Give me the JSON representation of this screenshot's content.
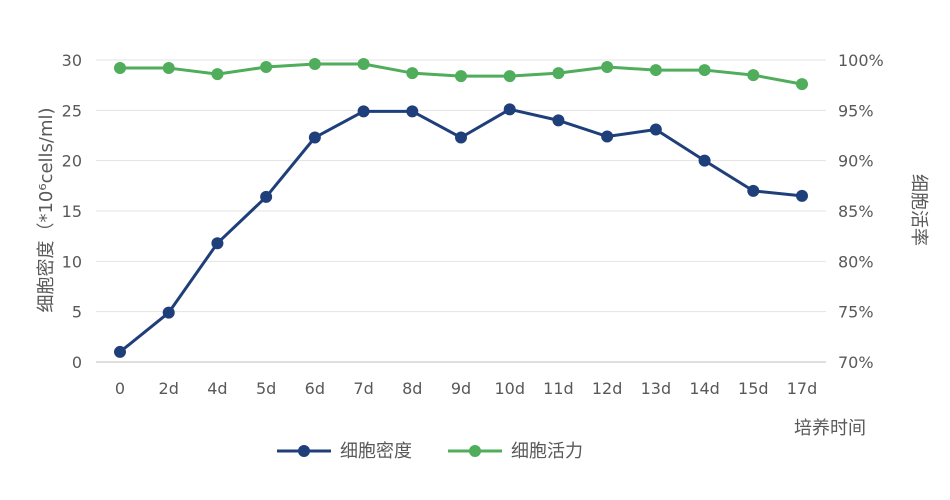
{
  "chart_data": {
    "type": "line",
    "categories": [
      "0",
      "2d",
      "4d",
      "5d",
      "6d",
      "7d",
      "8d",
      "9d",
      "10d",
      "11d",
      "12d",
      "13d",
      "14d",
      "15d",
      "17d"
    ],
    "series": [
      {
        "name": "细胞密度",
        "axis": "left",
        "color": "#1f3f7a",
        "values": [
          1.0,
          4.9,
          11.8,
          16.4,
          22.3,
          24.9,
          24.9,
          22.3,
          25.1,
          24.0,
          22.4,
          23.1,
          20.0,
          17.0,
          16.5
        ]
      },
      {
        "name": "细胞活力",
        "axis": "right",
        "color": "#4fad5b",
        "values": [
          0.992,
          0.992,
          0.986,
          0.993,
          0.996,
          0.996,
          0.987,
          0.984,
          0.984,
          0.987,
          0.993,
          0.99,
          0.99,
          0.985,
          0.976
        ]
      }
    ],
    "left_axis": {
      "label": "细胞密度（*10⁶cells/ml)",
      "ylim": [
        0,
        30
      ],
      "ticks": [
        "0",
        "5",
        "10",
        "15",
        "20",
        "25",
        "30"
      ]
    },
    "right_axis": {
      "label": "细胞活率",
      "ylim": [
        0.7,
        1.0
      ],
      "ticks": [
        "70%",
        "75%",
        "80%",
        "85%",
        "90%",
        "95%",
        "100%"
      ]
    },
    "xlabel": "培养时间",
    "grid": true,
    "legend_position": "bottom"
  }
}
